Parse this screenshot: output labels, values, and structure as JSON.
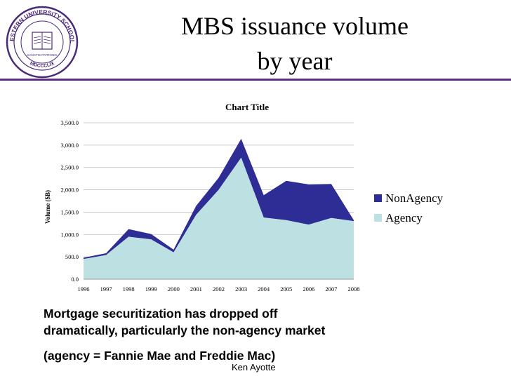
{
  "slide": {
    "title_line1": "MBS issuance volume",
    "title_line2": "by year",
    "body_line1": "Mortgage securitization has dropped off",
    "body_line2": "dramatically, particularly the non-agency market",
    "body_line3": "(agency = Fannie Mae and Freddie Mac)",
    "author": "Ken Ayotte",
    "seal_text_top": "NORTHWESTERN UNIVERSITY SCHOOL OF LAW",
    "seal_text_inner": "SANCTIS PATRONIS",
    "seal_text_bottom": "MDCCCLIX",
    "accent_color": "#5a2d82"
  },
  "chart_data": {
    "type": "area",
    "title": "Chart Title",
    "ylabel": "Volume ($B)",
    "xlabel": "",
    "categories": [
      "1996",
      "1997",
      "1998",
      "1999",
      "2000",
      "2001",
      "2002",
      "2003",
      "2004",
      "2005",
      "2006",
      "2007",
      "2008"
    ],
    "y_ticks": [
      "0.0",
      "500.0",
      "1,000.0",
      "1,500.0",
      "2,000.0",
      "2,500.0",
      "3,000.0",
      "3,500.0"
    ],
    "ylim": [
      0,
      3500
    ],
    "stacked": true,
    "grid": true,
    "legend_position": "right",
    "series": [
      {
        "name": "NonAgency",
        "color": "#2e2d96",
        "values": [
          30,
          40,
          170,
          120,
          60,
          200,
          270,
          420,
          500,
          880,
          900,
          760,
          20
        ]
      },
      {
        "name": "Agency",
        "color": "#bde0e2",
        "values": [
          450,
          540,
          950,
          890,
          600,
          1440,
          2000,
          2720,
          1380,
          1320,
          1220,
          1370,
          1300
        ]
      }
    ]
  }
}
